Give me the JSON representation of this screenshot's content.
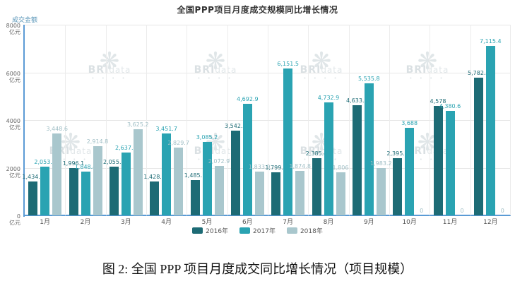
{
  "page": {
    "caption": "图 2: 全国 PPP 项目月度成交同比增长情况（项目规模）"
  },
  "watermark": {
    "brand": "BRI",
    "suffix": "data"
  },
  "chart_data": {
    "type": "bar",
    "title": "全国PPP项目月度成交规模同比增长情况",
    "y_axis_title": "成交金额",
    "y_unit": "亿元",
    "xlabel": "",
    "ylabel": "成交金额 (亿元)",
    "ylim": [
      0,
      8000
    ],
    "yticks": [
      8000,
      6000,
      4000,
      2000,
      0
    ],
    "grid": true,
    "legend_position": "bottom",
    "categories": [
      "1月",
      "2月",
      "3月",
      "4月",
      "5月",
      "6月",
      "7月",
      "8月",
      "9月",
      "10月",
      "11月",
      "12月"
    ],
    "series": [
      {
        "name": "2016年",
        "color": "#1d6b75",
        "values": [
          1434.7,
          1996.1,
          2055.8,
          1428.1,
          1485.1,
          3542.1,
          1799.0,
          2385.4,
          4633.6,
          2395.5,
          4578,
          5782.3
        ],
        "labels": [
          "1,434.7",
          "1,996.1",
          "2,055.8",
          "1,428.1",
          "1,485.1",
          "3,542.1",
          "1,799.0",
          "2,385.4",
          "4,633.6",
          "2,395.5",
          "4,578",
          "5,782.3"
        ]
      },
      {
        "name": "2017年",
        "color": "#2aa3b2",
        "values": [
          2053.2,
          1848.4,
          2637.6,
          3451.7,
          3085.2,
          4692.9,
          6151.5,
          4732.9,
          5535.8,
          3688,
          4380.6,
          7115.4
        ],
        "labels": [
          "2,053.2",
          "1,848.4",
          "2,637.6",
          "3,451.7",
          "3,085.2",
          "4,692.9",
          "6,151.5",
          "4,732.9",
          "5,535.8",
          "3,688",
          "4,380.6",
          "7,115.4"
        ]
      },
      {
        "name": "2018年",
        "color": "#a9c7cd",
        "values": [
          3448.6,
          2914.8,
          3625.2,
          2829.7,
          2072.9,
          1833.9,
          1874.8,
          1806,
          1983.2,
          0,
          0,
          0
        ],
        "labels": [
          "3,448.6",
          "2,914.8",
          "3,625.2",
          "2,829.7",
          "2,072.9",
          "1,833.9",
          "1,874.8",
          "1,806",
          "1,983.2",
          "0",
          "0",
          "0"
        ]
      }
    ]
  }
}
